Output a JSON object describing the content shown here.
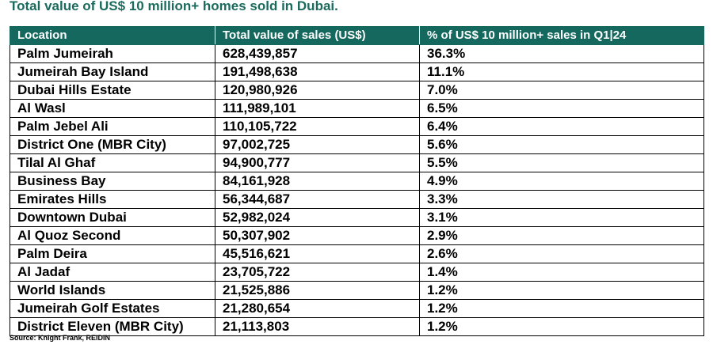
{
  "title": "Total value of US$ 10 million+ homes sold in Dubai.",
  "source": "Source: Knight Frank, REIDIN",
  "colors": {
    "title": "#1a6b5e",
    "header_bg": "#14685d",
    "header_text": "#ffffff"
  },
  "chart_data": {
    "type": "table",
    "title": "Total value of US$ 10 million+ homes sold in Dubai.",
    "columns": [
      "Location",
      "Total value of sales (US$)",
      "% of US$ 10 million+ sales in Q1|24"
    ],
    "rows": [
      [
        "Palm Jumeirah",
        "628,439,857",
        "36.3%"
      ],
      [
        "Jumeirah Bay Island",
        "191,498,638",
        "11.1%"
      ],
      [
        "Dubai Hills Estate",
        "120,980,926",
        "7.0%"
      ],
      [
        "Al Wasl",
        "111,989,101",
        "6.5%"
      ],
      [
        "Palm Jebel Ali",
        "110,105,722",
        "6.4%"
      ],
      [
        "District One (MBR City)",
        "97,002,725",
        "5.6%"
      ],
      [
        "Tilal Al Ghaf",
        "94,900,777",
        "5.5%"
      ],
      [
        "Business Bay",
        "84,161,928",
        "4.9%"
      ],
      [
        "Emirates Hills",
        "56,344,687",
        "3.3%"
      ],
      [
        "Downtown Dubai",
        "52,982,024",
        "3.1%"
      ],
      [
        "Al Quoz Second",
        "50,307,902",
        "2.9%"
      ],
      [
        "Palm Deira",
        "45,516,621",
        "2.6%"
      ],
      [
        "Al Jadaf",
        "23,705,722",
        "1.4%"
      ],
      [
        "World Islands",
        "21,525,886",
        "1.2%"
      ],
      [
        "Jumeirah Golf Estates",
        "21,280,654",
        "1.2%"
      ],
      [
        "District Eleven (MBR City)",
        "21,113,803",
        "1.2%"
      ]
    ],
    "source": "Source: Knight Frank, REIDIN"
  }
}
